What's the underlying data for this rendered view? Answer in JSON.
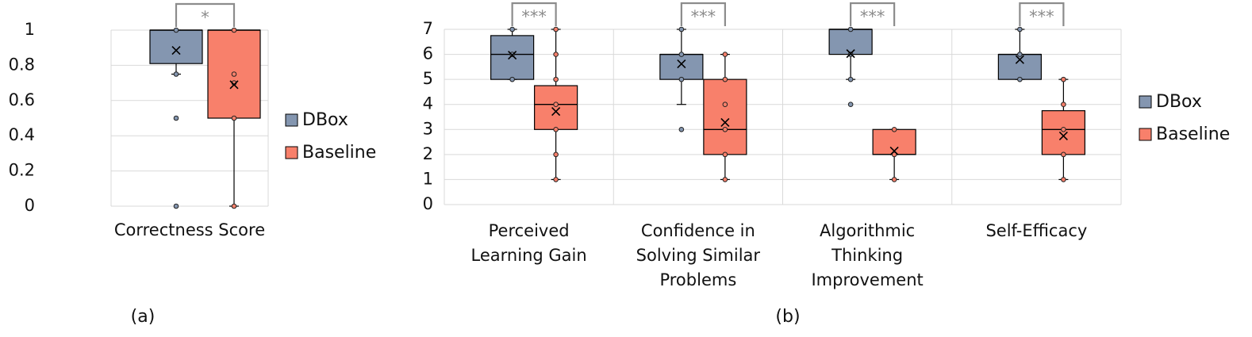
{
  "colors": {
    "dbox": "#8496b0",
    "baseline": "#f8806b",
    "box_stroke": "#000000",
    "grid": "#d9d9d9",
    "significance": "#8c8c8c"
  },
  "legend_labels": [
    "DBox",
    "Baseline"
  ],
  "chart_data": [
    {
      "type": "box",
      "panel_label": "(a)",
      "categories": [
        "Correctness Score"
      ],
      "ylim": [
        0,
        1
      ],
      "y_ticks": [
        "0",
        "0.2",
        "0.4",
        "0.6",
        "0.8",
        "1"
      ],
      "grid": true,
      "legend_position": "right",
      "significance": [
        "*"
      ],
      "series": [
        {
          "name": "DBox",
          "color": "#8496b0",
          "boxes": [
            {
              "q1": 0.81,
              "median": 1.0,
              "q3": 1.0,
              "whisker_low": 0.75,
              "whisker_high": 1.0,
              "mean": 0.885,
              "points": [
                1.0,
                0.75,
                0.5,
                0.0
              ]
            }
          ]
        },
        {
          "name": "Baseline",
          "color": "#f8806b",
          "boxes": [
            {
              "q1": 0.5,
              "median": 1.0,
              "q3": 1.0,
              "whisker_low": 0.0,
              "whisker_high": 1.0,
              "mean": 0.69,
              "points": [
                1.0,
                0.75,
                0.7,
                0.5,
                0.0
              ]
            }
          ]
        }
      ]
    },
    {
      "type": "box",
      "panel_label": "(b)",
      "categories": [
        [
          "Perceived",
          "Learning Gain"
        ],
        [
          "Confidence in",
          "Solving Similar",
          "Problems"
        ],
        [
          "Algorithmic",
          "Thinking",
          "Improvement"
        ],
        [
          "Self-Efficacy"
        ]
      ],
      "ylim": [
        0,
        7
      ],
      "y_ticks": [
        "0",
        "1",
        "2",
        "3",
        "4",
        "5",
        "6",
        "7"
      ],
      "grid": true,
      "legend_position": "right",
      "significance": [
        "***",
        "***",
        "***",
        "***"
      ],
      "series": [
        {
          "name": "DBox",
          "color": "#8496b0",
          "boxes": [
            {
              "q1": 5,
              "median": 6,
              "q3": 6.75,
              "whisker_low": 5,
              "whisker_high": 7,
              "mean": 5.97,
              "points": [
                7,
                6,
                5
              ]
            },
            {
              "q1": 5,
              "median": 6,
              "q3": 6,
              "whisker_low": 4,
              "whisker_high": 7,
              "mean": 5.62,
              "points": [
                7,
                6,
                5,
                3
              ]
            },
            {
              "q1": 6,
              "median": 7,
              "q3": 7,
              "whisker_low": 5,
              "whisker_high": 7,
              "mean": 6.03,
              "points": [
                7,
                6,
                5,
                4
              ]
            },
            {
              "q1": 5,
              "median": 6,
              "q3": 6,
              "whisker_low": 5,
              "whisker_high": 7,
              "mean": 5.79,
              "points": [
                7,
                6,
                5
              ]
            }
          ]
        },
        {
          "name": "Baseline",
          "color": "#f8806b",
          "boxes": [
            {
              "q1": 3,
              "median": 4,
              "q3": 4.75,
              "whisker_low": 1,
              "whisker_high": 7,
              "mean": 3.72,
              "points": [
                7,
                6,
                5,
                4,
                3,
                2,
                1
              ]
            },
            {
              "q1": 2,
              "median": 3,
              "q3": 5,
              "whisker_low": 1,
              "whisker_high": 6,
              "mean": 3.28,
              "points": [
                6,
                5,
                4,
                3,
                2,
                1
              ]
            },
            {
              "q1": 2,
              "median": 2,
              "q3": 3,
              "whisker_low": 1,
              "whisker_high": 3,
              "mean": 2.14,
              "points": [
                3,
                2,
                1
              ]
            },
            {
              "q1": 2,
              "median": 3,
              "q3": 3.75,
              "whisker_low": 1,
              "whisker_high": 5,
              "mean": 2.74,
              "points": [
                5,
                4,
                3,
                2,
                1
              ]
            }
          ]
        }
      ]
    }
  ]
}
